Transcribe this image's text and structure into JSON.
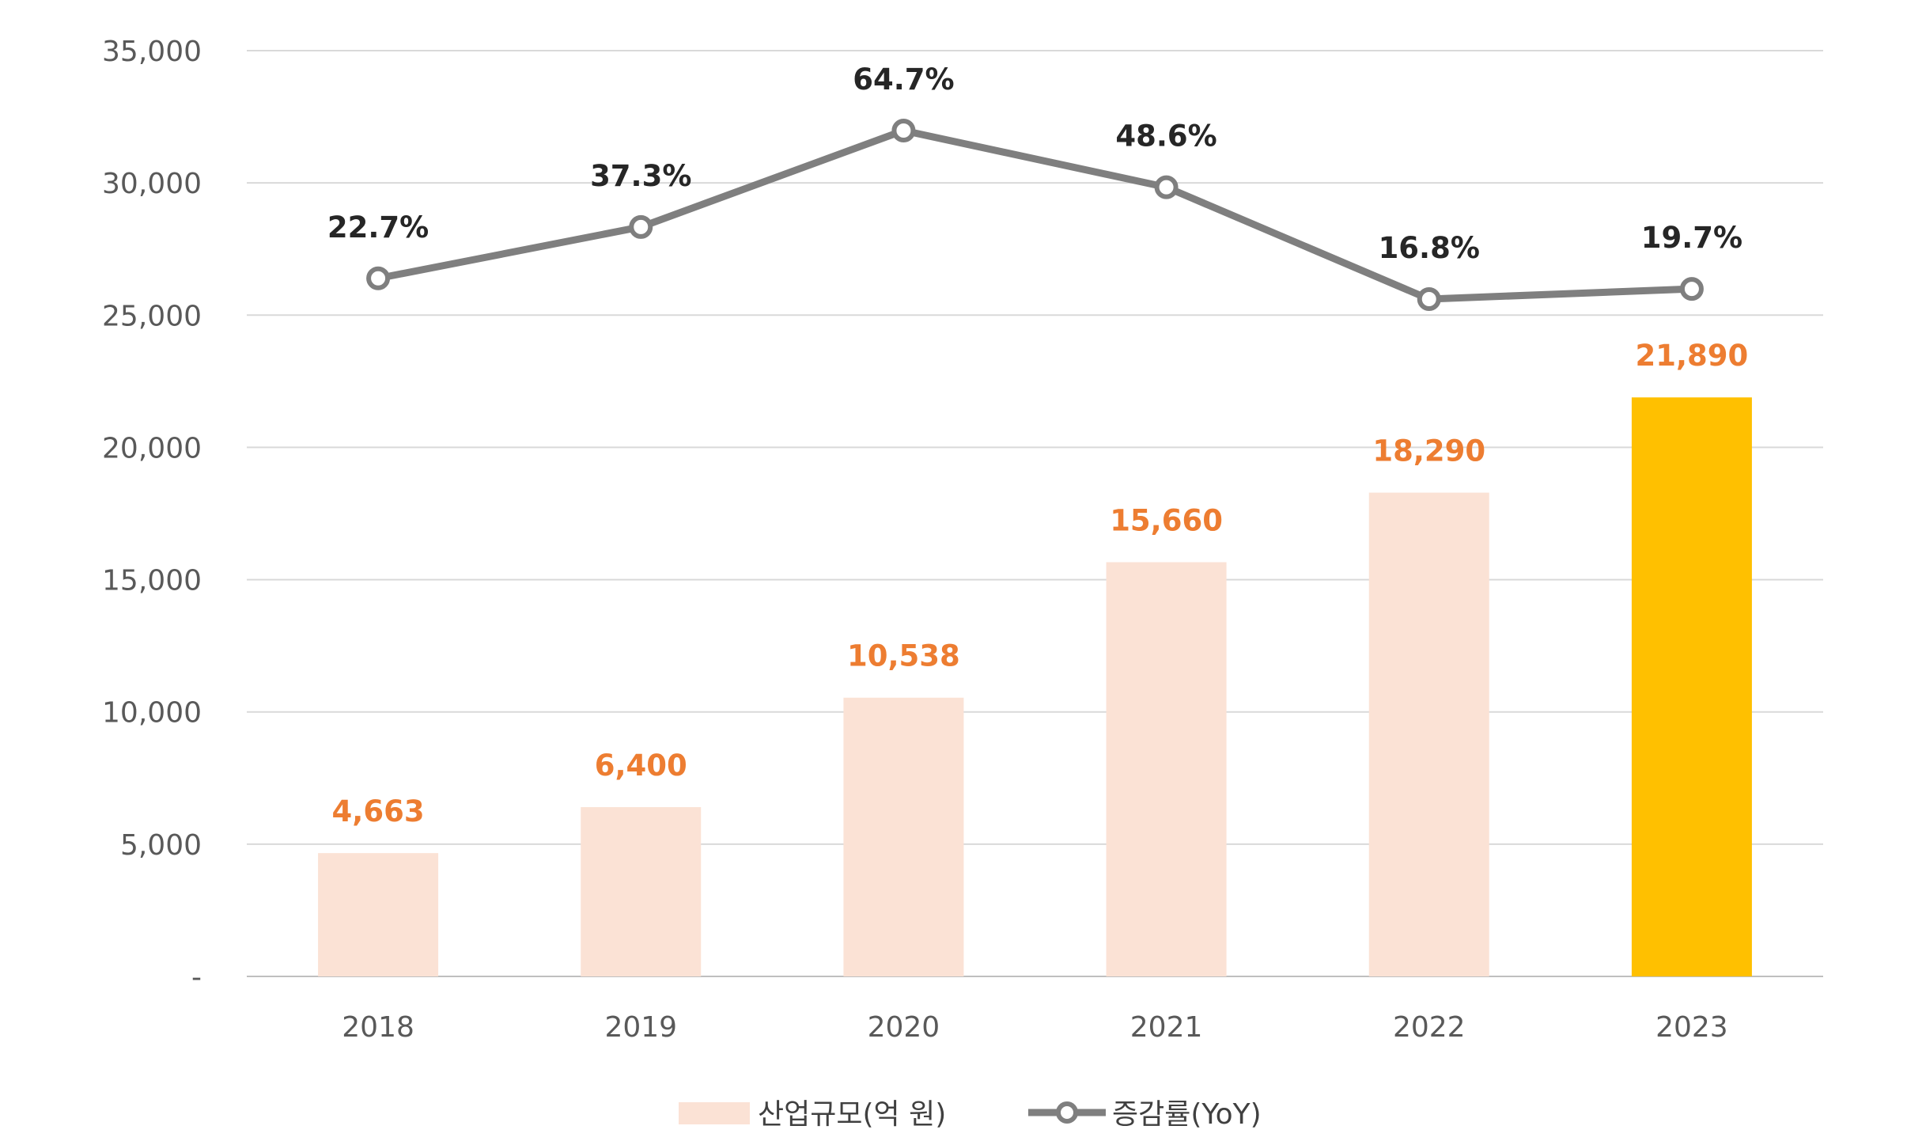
{
  "chart_data": {
    "type": "bar",
    "categories": [
      "2018",
      "2019",
      "2020",
      "2021",
      "2022",
      "2023"
    ],
    "series": [
      {
        "name": "산업규모(억 원)",
        "type": "bar",
        "values": [
          4663,
          6400,
          10538,
          15660,
          18290,
          21890
        ],
        "labels": [
          "4,663",
          "6,400",
          "10,538",
          "15,660",
          "18,290",
          "21,890"
        ],
        "color": "#fbe2d5",
        "highlight_color": "#ffc000",
        "highlight_index": 5
      },
      {
        "name": "증감률(YoY)",
        "type": "line",
        "values": [
          22.7,
          37.3,
          64.7,
          48.6,
          16.8,
          19.7
        ],
        "labels": [
          "22.7%",
          "37.3%",
          "64.7%",
          "48.6%",
          "16.8%",
          "19.7%"
        ],
        "color": "#7f7f7f",
        "secondary_axis": true
      }
    ],
    "yticks": [
      "-",
      "5,000",
      "10,000",
      "15,000",
      "20,000",
      "25,000",
      "30,000",
      "35,000"
    ],
    "ylim": [
      0,
      35000
    ],
    "grid": true,
    "legend": "bottom-center",
    "label_color_bar": "#ed7d31",
    "label_color_line": "#262626"
  }
}
